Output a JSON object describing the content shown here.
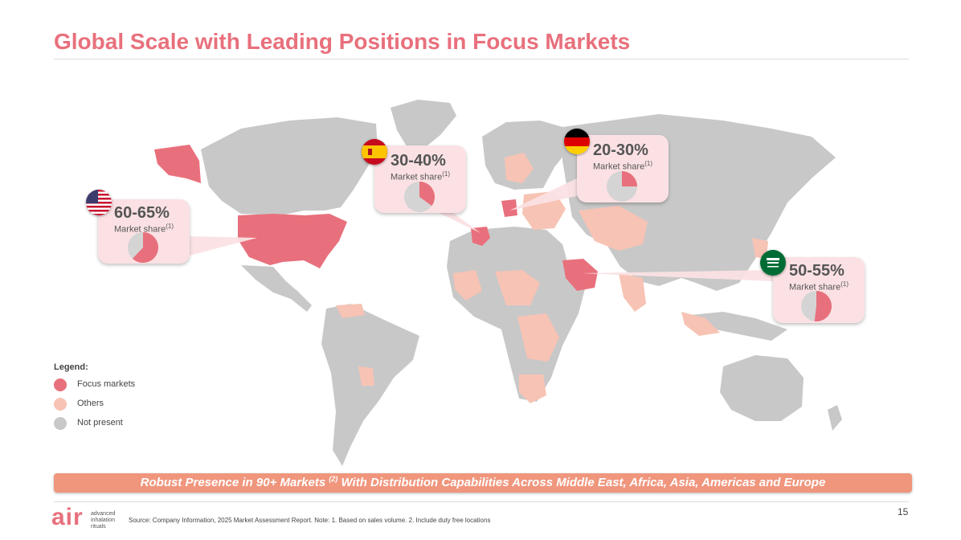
{
  "title": "Global Scale with Leading Positions in Focus Markets",
  "colors": {
    "focus": "#e8707c",
    "others": "#f7c3b4",
    "not_present": "#c8c8c8",
    "accent": "#e8707c",
    "callout_bg": "#fbe1e4",
    "banner": "#f0967d"
  },
  "callouts": [
    {
      "flag": "us-flag-icon",
      "share": "60-65%",
      "label": "Market share",
      "note": "(1)",
      "pie_value": 0.62
    },
    {
      "flag": "spain-flag-icon",
      "share": "30-40%",
      "label": "Market share",
      "note": "(1)",
      "pie_value": 0.35
    },
    {
      "flag": "germany-flag-icon",
      "share": "20-30%",
      "label": "Market share",
      "note": "(1)",
      "pie_value": 0.25
    },
    {
      "flag": "saudi-arabia-flag-icon",
      "share": "50-55%",
      "label": "Market share",
      "note": "(1)",
      "pie_value": 0.52
    }
  ],
  "legend": {
    "title": "Legend:",
    "items": [
      {
        "label": "Focus markets",
        "color": "#e8707c"
      },
      {
        "label": "Others",
        "color": "#f7c3b4"
      },
      {
        "label": "Not present",
        "color": "#c8c8c8"
      }
    ]
  },
  "banner": {
    "text_before": "Robust Presence in 90+ Markets ",
    "note": "(2)",
    "text_after": " With Distribution Capabilities Across Middle East, Africa, Asia, Americas and Europe"
  },
  "page_number": "15",
  "logo": {
    "mark": "air",
    "line1": "advanced",
    "line2": "inhalation",
    "line3": "rituals"
  },
  "source": "Source: Company Information, 2025 Market Assessment Report. Note: 1. Based on sales volume. 2. Include duty free locations"
}
